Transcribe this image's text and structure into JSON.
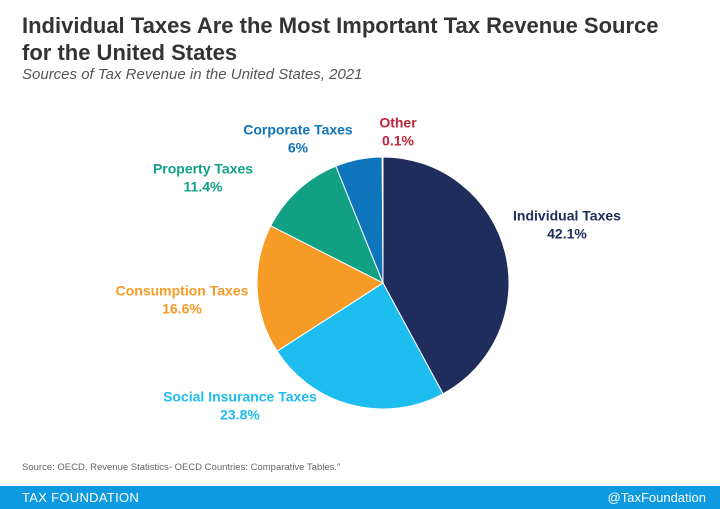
{
  "chart_data": {
    "type": "pie",
    "title": "Individual Taxes Are the Most Important Tax Revenue Source for the United States",
    "subtitle": "Sources of Tax Revenue in the United States, 2021",
    "categories": [
      "Individual Taxes",
      "Social Insurance Taxes",
      "Consumption Taxes",
      "Property Taxes",
      "Corporate Taxes",
      "Other"
    ],
    "values": [
      42.1,
      23.8,
      16.6,
      11.4,
      6,
      0.1
    ],
    "value_labels": [
      "42.1%",
      "23.8%",
      "16.6%",
      "11.4%",
      "6%",
      "0.1%"
    ],
    "colors": [
      "#1f2d5c",
      "#1ebdef",
      "#f59b26",
      "#12a085",
      "#0e74bb",
      "#c0243c"
    ],
    "source": "Source: OECD, Revenue Statistics- OECD Countries: Comparative Tables.\""
  },
  "footer": {
    "brand": "TAX FOUNDATION",
    "handle": "@TaxFoundation"
  }
}
